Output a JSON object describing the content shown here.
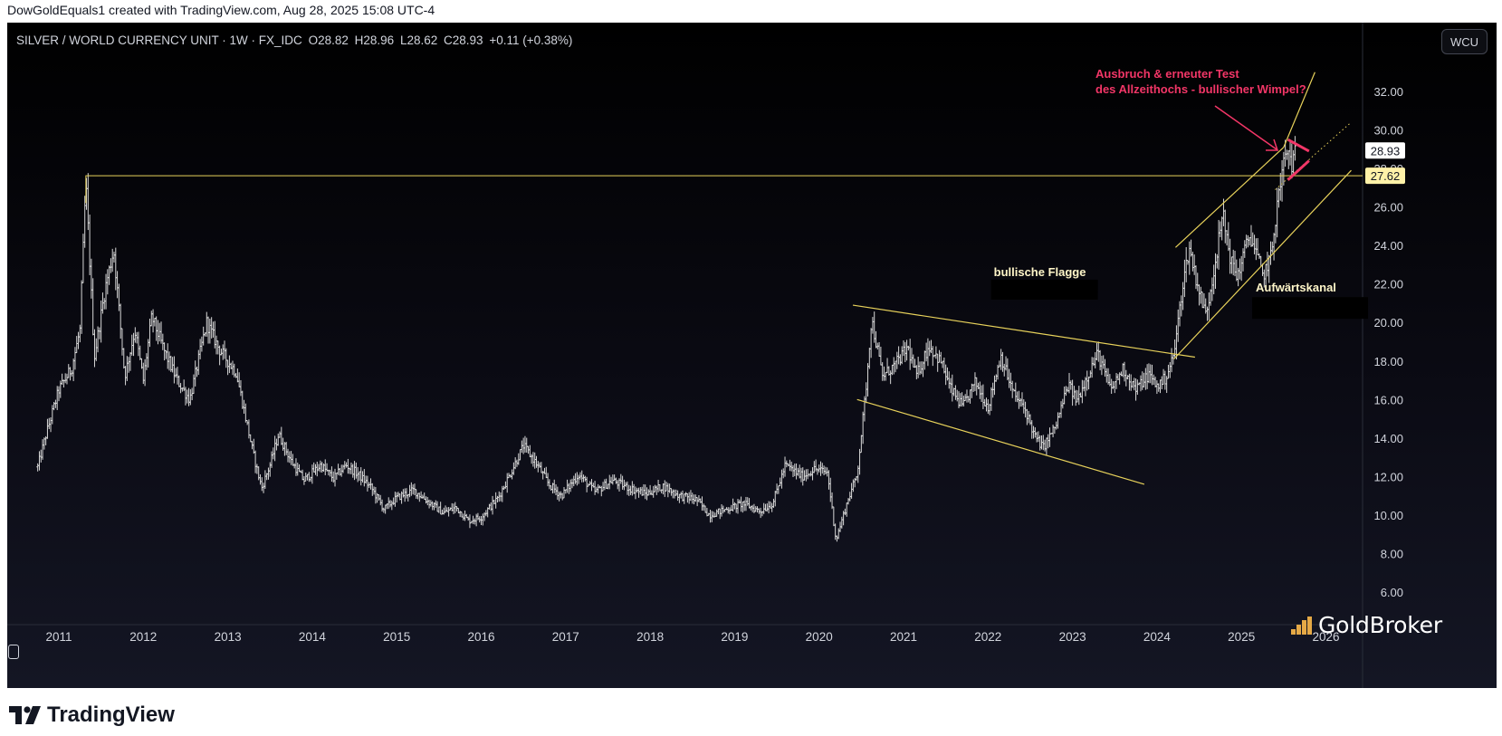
{
  "credit": "DowGoldEquals1 created with TradingView.com, Aug 28, 2025 15:08 UTC-4",
  "legend": {
    "symbol": "SILVER / WORLD CURRENCY UNIT · 1W · FX_IDC",
    "open": "O28.82",
    "high": "H28.96",
    "low": "L28.62",
    "close": "C28.93",
    "change": "+0.11 (+0.38%)"
  },
  "currency_button": "WCU",
  "watermark": "GoldBroker",
  "footer_logo": "TradingView",
  "colors": {
    "candles": "#d8d8d8",
    "trendlines": "#e8d25b",
    "annotation": "#f23667",
    "axis_text": "#d1d4dc",
    "watermark_bars": "#e5a946"
  },
  "chart_data": {
    "type": "bar",
    "subtype": "ohlc-weekly",
    "x_unit": "year",
    "ylim": [
      5,
      35
    ],
    "y_ticks": [
      6,
      8,
      10,
      12,
      14,
      16,
      18,
      20,
      22,
      24,
      26,
      28,
      30,
      32
    ],
    "y_tick_labels": [
      "6.00",
      "8.00",
      "10.00",
      "12.00",
      "14.00",
      "16.00",
      "18.00",
      "20.00",
      "22.00",
      "24.00",
      "26.00",
      "28.00",
      "30.00",
      "32.00"
    ],
    "x_ticks": [
      2011,
      2012,
      2013,
      2014,
      2015,
      2016,
      2017,
      2018,
      2019,
      2020,
      2021,
      2022,
      2023,
      2024,
      2025,
      2026
    ],
    "x_tick_labels": [
      "2011",
      "2012",
      "2013",
      "2014",
      "2015",
      "2016",
      "2017",
      "2018",
      "2019",
      "2020",
      "2021",
      "2022",
      "2023",
      "2024",
      "2025",
      "2026"
    ],
    "price_anchors": [
      [
        2010.75,
        12.5
      ],
      [
        2010.85,
        14.2
      ],
      [
        2011.0,
        16.5
      ],
      [
        2011.15,
        17.6
      ],
      [
        2011.25,
        19.6
      ],
      [
        2011.32,
        27.3
      ],
      [
        2011.42,
        18.2
      ],
      [
        2011.55,
        21.8
      ],
      [
        2011.65,
        23.8
      ],
      [
        2011.78,
        17.2
      ],
      [
        2011.9,
        19.6
      ],
      [
        2012.0,
        17.0
      ],
      [
        2012.1,
        20.3
      ],
      [
        2012.25,
        18.5
      ],
      [
        2012.4,
        17.0
      ],
      [
        2012.55,
        16.0
      ],
      [
        2012.75,
        20.0
      ],
      [
        2012.9,
        18.6
      ],
      [
        2013.1,
        17.4
      ],
      [
        2013.3,
        13.2
      ],
      [
        2013.4,
        11.4
      ],
      [
        2013.5,
        12.6
      ],
      [
        2013.6,
        14.2
      ],
      [
        2013.75,
        12.8
      ],
      [
        2013.9,
        11.8
      ],
      [
        2014.1,
        12.6
      ],
      [
        2014.25,
        11.9
      ],
      [
        2014.4,
        12.6
      ],
      [
        2014.55,
        12.1
      ],
      [
        2014.7,
        11.4
      ],
      [
        2014.85,
        10.3
      ],
      [
        2015.0,
        10.9
      ],
      [
        2015.2,
        11.3
      ],
      [
        2015.4,
        10.6
      ],
      [
        2015.55,
        10.1
      ],
      [
        2015.7,
        10.4
      ],
      [
        2015.85,
        9.7
      ],
      [
        2016.0,
        9.9
      ],
      [
        2016.2,
        10.9
      ],
      [
        2016.35,
        12.2
      ],
      [
        2016.5,
        13.6
      ],
      [
        2016.65,
        12.7
      ],
      [
        2016.8,
        11.6
      ],
      [
        2016.95,
        11.0
      ],
      [
        2017.15,
        12.1
      ],
      [
        2017.35,
        11.2
      ],
      [
        2017.55,
        11.8
      ],
      [
        2017.75,
        11.4
      ],
      [
        2017.95,
        11.1
      ],
      [
        2018.15,
        11.5
      ],
      [
        2018.35,
        11.0
      ],
      [
        2018.55,
        10.8
      ],
      [
        2018.7,
        10.0
      ],
      [
        2018.9,
        10.3
      ],
      [
        2019.1,
        10.6
      ],
      [
        2019.3,
        10.2
      ],
      [
        2019.45,
        10.6
      ],
      [
        2019.6,
        12.6
      ],
      [
        2019.8,
        12.0
      ],
      [
        2019.95,
        12.4
      ],
      [
        2020.1,
        12.2
      ],
      [
        2020.2,
        8.7
      ],
      [
        2020.35,
        10.9
      ],
      [
        2020.45,
        12.1
      ],
      [
        2020.55,
        16.3
      ],
      [
        2020.62,
        20.2
      ],
      [
        2020.75,
        17.2
      ],
      [
        2020.9,
        17.8
      ],
      [
        2021.05,
        18.7
      ],
      [
        2021.15,
        17.2
      ],
      [
        2021.3,
        18.8
      ],
      [
        2021.45,
        17.9
      ],
      [
        2021.55,
        16.6
      ],
      [
        2021.7,
        15.6
      ],
      [
        2021.85,
        16.9
      ],
      [
        2022.0,
        15.6
      ],
      [
        2022.15,
        18.3
      ],
      [
        2022.3,
        16.3
      ],
      [
        2022.45,
        15.4
      ],
      [
        2022.55,
        14.1
      ],
      [
        2022.65,
        13.5
      ],
      [
        2022.8,
        14.6
      ],
      [
        2022.95,
        16.8
      ],
      [
        2023.05,
        15.9
      ],
      [
        2023.15,
        17.0
      ],
      [
        2023.3,
        18.4
      ],
      [
        2023.45,
        16.5
      ],
      [
        2023.6,
        17.6
      ],
      [
        2023.75,
        16.5
      ],
      [
        2023.9,
        17.3
      ],
      [
        2024.0,
        16.7
      ],
      [
        2024.1,
        17.1
      ],
      [
        2024.2,
        18.3
      ],
      [
        2024.3,
        21.8
      ],
      [
        2024.38,
        23.9
      ],
      [
        2024.5,
        21.6
      ],
      [
        2024.58,
        20.4
      ],
      [
        2024.68,
        22.9
      ],
      [
        2024.78,
        25.6
      ],
      [
        2024.88,
        23.1
      ],
      [
        2024.95,
        22.4
      ],
      [
        2025.1,
        24.6
      ],
      [
        2025.2,
        23.2
      ],
      [
        2025.25,
        22.4
      ],
      [
        2025.35,
        23.4
      ],
      [
        2025.42,
        26.0
      ],
      [
        2025.5,
        28.3
      ],
      [
        2025.55,
        28.9
      ],
      [
        2025.6,
        28.2
      ],
      [
        2025.65,
        28.93
      ]
    ],
    "horizontal_line": {
      "y": 27.62,
      "label": "27.62",
      "from_x": 2011.32
    },
    "last_price": {
      "y": 28.93,
      "label": "28.93"
    },
    "trendlines": [
      {
        "name": "flag-upper",
        "x1": 2020.4,
        "y1": 20.9,
        "x2": 2024.45,
        "y2": 18.2
      },
      {
        "name": "flag-lower",
        "x1": 2020.45,
        "y1": 16.0,
        "x2": 2023.85,
        "y2": 11.6
      },
      {
        "name": "channel-upper",
        "x1": 2024.22,
        "y1": 23.9,
        "x2": 2025.5,
        "y2": 29.1
      },
      {
        "name": "channel-upper-ext",
        "x1": 2025.5,
        "y1": 29.1,
        "x2": 2025.87,
        "y2": 33.0
      },
      {
        "name": "channel-lower",
        "x1": 2024.2,
        "y1": 18.1,
        "x2": 2026.3,
        "y2": 27.9
      },
      {
        "name": "channel-mid-dotted",
        "x1": 2025.4,
        "y1": 26.9,
        "x2": 2026.3,
        "y2": 30.4
      }
    ],
    "annotations": [
      {
        "text": "bullische Flagge",
        "x": 2022.1,
        "y": 21.8
      },
      {
        "text": "Aufwärtskanal",
        "x": 2025.17,
        "y": 21.6
      },
      {
        "text_line1": "Ausbruch & erneuter Test",
        "text_line2": "des Allzeithochs - bullischer Wimpel?",
        "x": 2025.47,
        "y": 32.2
      }
    ]
  }
}
